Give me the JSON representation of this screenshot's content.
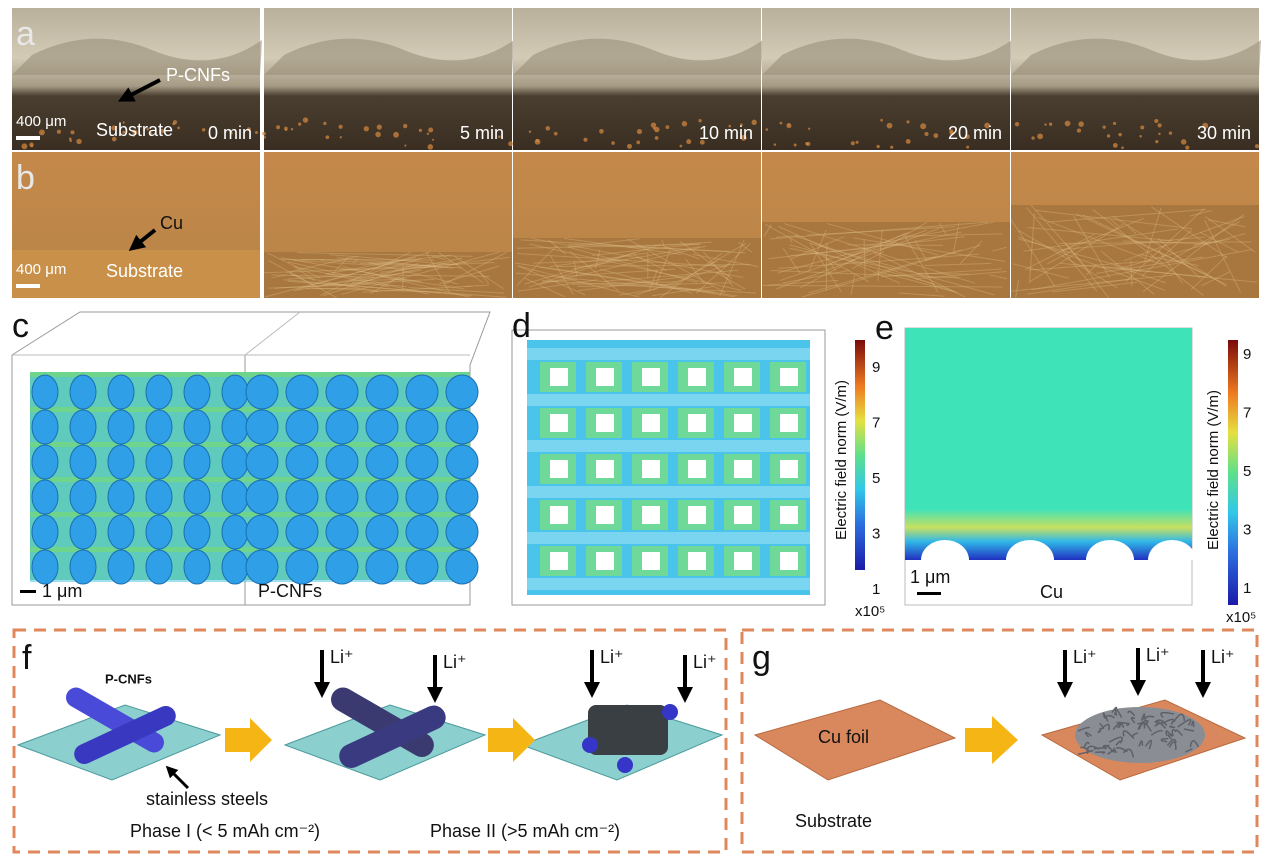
{
  "panel_a": {
    "label": "a",
    "annotation": "P-CNFs",
    "scale_bar": "400 μm",
    "substrate": "Substrate",
    "times": [
      "0 min",
      "5 min",
      "10 min",
      "20 min",
      "30 min"
    ]
  },
  "panel_b": {
    "label": "b",
    "annotation": "Cu",
    "scale_bar": "400 μm",
    "substrate": "Substrate"
  },
  "panel_c": {
    "label": "c",
    "scale_bar": "1 μm",
    "material": "P-CNFs"
  },
  "panel_d": {
    "label": "d",
    "colorbar": {
      "title": "Electric field norm (V/m)",
      "ticks": [
        9,
        7,
        5,
        3,
        1
      ],
      "multiplier": "x10⁵"
    }
  },
  "panel_e": {
    "label": "e",
    "scale_bar": "1 μm",
    "material": "Cu",
    "colorbar": {
      "title": "Electric field norm (V/m)",
      "ticks": [
        9,
        7,
        5,
        3,
        1
      ],
      "multiplier": "x10⁵"
    }
  },
  "panel_f": {
    "label": "f",
    "material": "P-CNFs",
    "ion_labels": [
      "Li⁺",
      "Li⁺",
      "Li⁺",
      "Li⁺"
    ],
    "substrate": "stainless steels",
    "phases": [
      "Phase I  (< 5 mAh cm⁻²)",
      "Phase II (>5 mAh cm⁻²)"
    ]
  },
  "panel_g": {
    "label": "g",
    "foil": "Cu foil",
    "substrate": "Substrate",
    "ion_labels": [
      "Li⁺",
      "Li⁺",
      "Li⁺"
    ]
  }
}
